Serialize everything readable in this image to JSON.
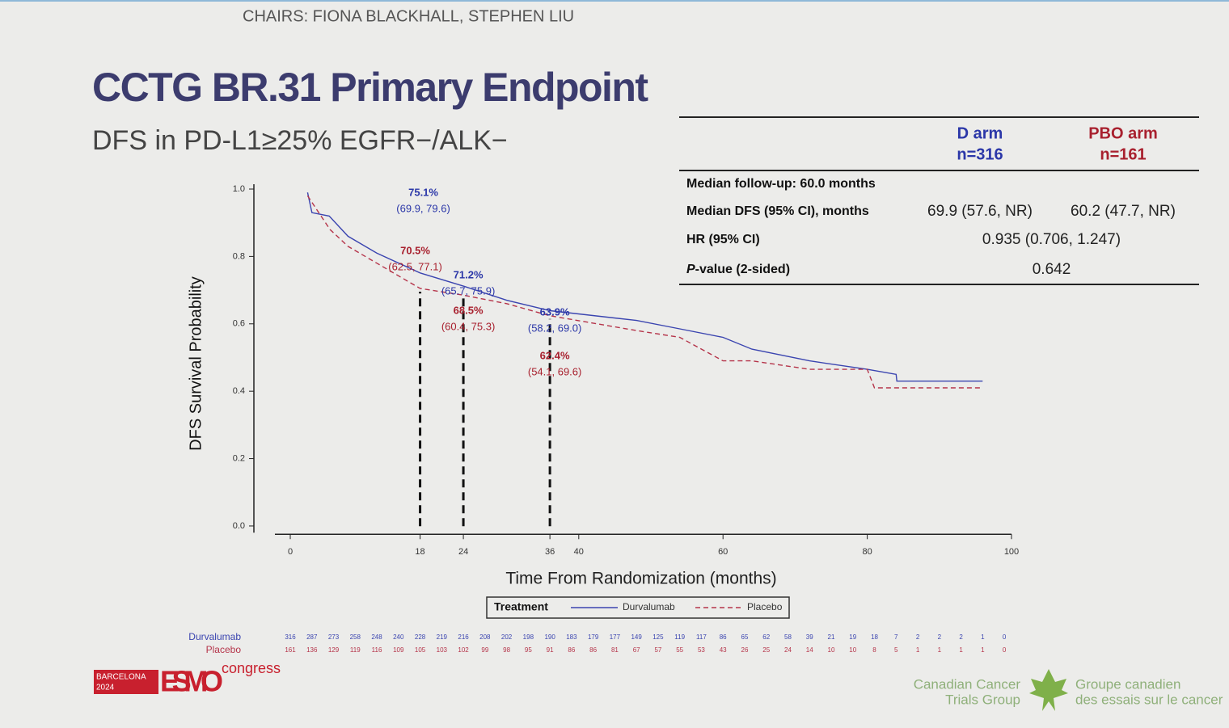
{
  "chairs": "CHAIRS: FIONA BLACKHALL, STEPHEN LIU",
  "title": "CCTG BR.31 Primary Endpoint",
  "subtitle": "DFS in PD-L1≥25% EGFR−/ALK−",
  "table": {
    "columns": [
      {
        "name": "D arm",
        "n": "n=316",
        "color": "#2b37a8"
      },
      {
        "name": "PBO arm",
        "n": "n=161",
        "color": "#a8202e"
      }
    ],
    "rows": [
      {
        "label": "Median follow-up: 60.0 months"
      },
      {
        "label": "Median DFS (95% CI), months",
        "cells": [
          "69.9 (57.6, NR)",
          "60.2 (47.7, NR)"
        ]
      },
      {
        "label": "HR (95% CI)",
        "span": "0.935 (0.706, 1.247)"
      },
      {
        "label_italic": "P",
        "label": "-value (2-sided)",
        "span": "0.642"
      }
    ]
  },
  "chart_data": {
    "type": "line",
    "y_label": "DFS Survival Probability",
    "x_label": "Time From Randomization (months)",
    "xlim": [
      -5,
      100
    ],
    "ylim": [
      -0.02,
      1
    ],
    "xticks": [
      0,
      18,
      24,
      36,
      40,
      60,
      80,
      100
    ],
    "yticks": [
      {
        "value": 0,
        "label": "0.0"
      },
      0.2,
      0.4,
      0.6,
      0.8,
      {
        "value": 1,
        "label": "1.0"
      }
    ],
    "legend_title": "Treatment",
    "series": [
      {
        "name": "Durvalumab",
        "color": "#3b45b0",
        "dash": false,
        "x": [
          2.4,
          3,
          5.4,
          8,
          12,
          18,
          24,
          30,
          36,
          48,
          54,
          60,
          64,
          72,
          80,
          84,
          84.1,
          96
        ],
        "values": [
          0.99,
          0.93,
          0.92,
          0.86,
          0.81,
          0.751,
          0.712,
          0.67,
          0.639,
          0.61,
          0.585,
          0.56,
          0.525,
          0.49,
          0.465,
          0.45,
          0.43,
          0.43
        ]
      },
      {
        "name": "Placebo",
        "color": "#b5344a",
        "dash": true,
        "x": [
          2.4,
          5.5,
          8,
          12,
          18,
          24,
          30,
          36,
          48,
          54,
          60,
          64,
          72,
          80,
          81,
          96
        ],
        "values": [
          0.98,
          0.88,
          0.83,
          0.78,
          0.705,
          0.685,
          0.66,
          0.624,
          0.58,
          0.56,
          0.49,
          0.49,
          0.465,
          0.465,
          0.41,
          0.41
        ]
      }
    ],
    "reference_x": [
      18,
      24,
      36
    ],
    "annotations": [
      {
        "x": 18,
        "value": 75.1,
        "label": "75.1%",
        "ci": "(69.9, 79.6)",
        "color": "#2b37a8"
      },
      {
        "x": 18,
        "value": 70.5,
        "label": "70.5%",
        "ci": "(62.5, 77.1)",
        "color": "#a8202e"
      },
      {
        "x": 24,
        "value": 71.2,
        "label": "71.2%",
        "ci": "(65.7, 75.9)",
        "color": "#2b37a8"
      },
      {
        "x": 24,
        "value": 68.5,
        "label": "68.5%",
        "ci": "(60.4, 75.3)",
        "color": "#a8202e"
      },
      {
        "x": 36,
        "value": 63.9,
        "label": "63.9%",
        "ci": "(58.2, 69.0)",
        "color": "#2b37a8"
      },
      {
        "x": 36,
        "value": 62.4,
        "label": "62.4%",
        "ci": "(54.1, 69.6)",
        "color": "#a8202e"
      }
    ],
    "risk_table": [
      {
        "name": "Durvalumab",
        "values": [
          316,
          287,
          273,
          258,
          248,
          240,
          228,
          219,
          216,
          208,
          202,
          198,
          190,
          183,
          179,
          177,
          149,
          125,
          119,
          117,
          86,
          65,
          62,
          58,
          39,
          21,
          19,
          18,
          7,
          2,
          2,
          2,
          1,
          0
        ]
      },
      {
        "name": "Placebo",
        "values": [
          161,
          136,
          129,
          119,
          116,
          109,
          105,
          103,
          102,
          99,
          98,
          95,
          91,
          86,
          86,
          81,
          67,
          57,
          55,
          53,
          43,
          26,
          25,
          24,
          14,
          10,
          10,
          8,
          5,
          1,
          1,
          1,
          1,
          0
        ]
      }
    ]
  },
  "footer": {
    "city": "BARCELONA",
    "year": "2024",
    "esmo": "ESMO",
    "congress": "congress",
    "cctg_en_1": "Canadian Cancer",
    "cctg_en_2": "Trials Group",
    "cctg_fr_1": "Groupe canadien",
    "cctg_fr_2": "des essais sur le cancer"
  }
}
